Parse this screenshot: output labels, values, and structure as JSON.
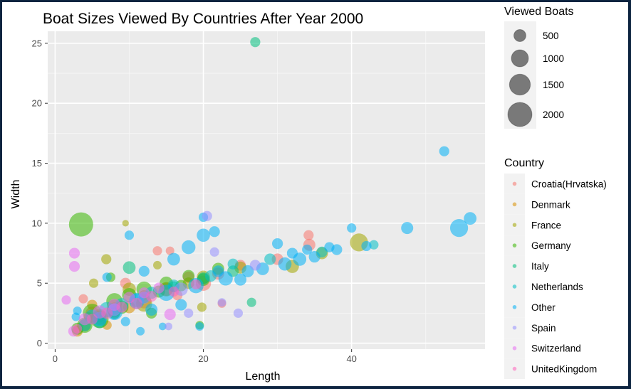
{
  "chart_data": {
    "type": "scatter",
    "title": "Boat Sizes Viewed By Countries After Year 2000",
    "xlabel": "Length",
    "ylabel": "Width",
    "xlim": [
      -1,
      58
    ],
    "ylim": [
      -0.5,
      26
    ],
    "x_ticks": [
      0,
      20,
      40
    ],
    "y_ticks": [
      0,
      5,
      10,
      15,
      20,
      25
    ],
    "grid": true,
    "size_legend": {
      "title": "Viewed Boats",
      "entries": [
        {
          "label": "500",
          "value": 500
        },
        {
          "label": "1000",
          "value": 1000
        },
        {
          "label": "1500",
          "value": 1500
        },
        {
          "label": "2000",
          "value": 2000
        }
      ]
    },
    "color_legend": {
      "title": "Country",
      "placement": "right"
    },
    "series": [
      {
        "name": "Croatia(Hrvatska)",
        "color": "#F8766D",
        "points": [
          {
            "x": 34.2,
            "y": 9.0,
            "size": 350
          },
          {
            "x": 34.3,
            "y": 8.2,
            "size": 500
          },
          {
            "x": 13.8,
            "y": 7.7,
            "size": 300
          },
          {
            "x": 15.5,
            "y": 7.7,
            "size": 250
          },
          {
            "x": 9.5,
            "y": 5.0,
            "size": 400
          },
          {
            "x": 15.0,
            "y": 4.5,
            "size": 600
          },
          {
            "x": 18.0,
            "y": 5.5,
            "size": 450
          },
          {
            "x": 22.0,
            "y": 5.8,
            "size": 500
          },
          {
            "x": 25.0,
            "y": 6.5,
            "size": 400
          },
          {
            "x": 12.0,
            "y": 3.5,
            "size": 700
          },
          {
            "x": 8.0,
            "y": 3.0,
            "size": 800
          },
          {
            "x": 5.0,
            "y": 2.5,
            "size": 600
          },
          {
            "x": 3.8,
            "y": 3.7,
            "size": 300
          },
          {
            "x": 30.0,
            "y": 7.0,
            "size": 450
          },
          {
            "x": 20.0,
            "y": 5.0,
            "size": 800
          },
          {
            "x": 16.5,
            "y": 4.0,
            "size": 350
          },
          {
            "x": 22.5,
            "y": 3.3,
            "size": 250
          }
        ]
      },
      {
        "name": "Denmark",
        "color": "#D89000",
        "points": [
          {
            "x": 3.0,
            "y": 1.0,
            "size": 400
          },
          {
            "x": 4.0,
            "y": 1.5,
            "size": 500
          },
          {
            "x": 6.0,
            "y": 2.0,
            "size": 450
          },
          {
            "x": 5.0,
            "y": 3.2,
            "size": 350
          },
          {
            "x": 8.0,
            "y": 2.5,
            "size": 400
          },
          {
            "x": 10.0,
            "y": 3.0,
            "size": 500
          },
          {
            "x": 7.0,
            "y": 1.5,
            "size": 300
          },
          {
            "x": 12.0,
            "y": 4.0,
            "size": 350
          },
          {
            "x": 4.5,
            "y": 2.2,
            "size": 300
          }
        ]
      },
      {
        "name": "France",
        "color": "#A3A500",
        "points": [
          {
            "x": 9.5,
            "y": 10.0,
            "size": 150
          },
          {
            "x": 6.9,
            "y": 7.0,
            "size": 350
          },
          {
            "x": 13.8,
            "y": 6.5,
            "size": 250
          },
          {
            "x": 5.2,
            "y": 5.0,
            "size": 300
          },
          {
            "x": 41.0,
            "y": 8.4,
            "size": 1100
          },
          {
            "x": 19.8,
            "y": 3.0,
            "size": 300
          },
          {
            "x": 10.0,
            "y": 4.5,
            "size": 600
          },
          {
            "x": 12.0,
            "y": 3.3,
            "size": 900
          },
          {
            "x": 15.0,
            "y": 4.5,
            "size": 700
          },
          {
            "x": 20.0,
            "y": 5.5,
            "size": 600
          },
          {
            "x": 25.0,
            "y": 6.3,
            "size": 500
          },
          {
            "x": 32.0,
            "y": 6.4,
            "size": 600
          },
          {
            "x": 36.0,
            "y": 7.5,
            "size": 500
          },
          {
            "x": 8.0,
            "y": 2.8,
            "size": 700
          },
          {
            "x": 6.0,
            "y": 2.3,
            "size": 600
          },
          {
            "x": 18.0,
            "y": 5.0,
            "size": 450
          }
        ]
      },
      {
        "name": "Germany",
        "color": "#39B600",
        "points": [
          {
            "x": 3.5,
            "y": 9.9,
            "size": 2000
          },
          {
            "x": 6.0,
            "y": 2.0,
            "size": 1100
          },
          {
            "x": 4.0,
            "y": 1.5,
            "size": 800
          },
          {
            "x": 8.0,
            "y": 3.5,
            "size": 900
          },
          {
            "x": 10.0,
            "y": 4.0,
            "size": 700
          },
          {
            "x": 12.0,
            "y": 4.5,
            "size": 800
          },
          {
            "x": 15.0,
            "y": 5.0,
            "size": 600
          },
          {
            "x": 18.0,
            "y": 5.6,
            "size": 500
          },
          {
            "x": 20.0,
            "y": 5.3,
            "size": 550
          },
          {
            "x": 22.0,
            "y": 6.2,
            "size": 500
          },
          {
            "x": 19.5,
            "y": 1.5,
            "size": 250
          },
          {
            "x": 7.5,
            "y": 5.5,
            "size": 300
          },
          {
            "x": 5.0,
            "y": 2.5,
            "size": 1200
          },
          {
            "x": 9.0,
            "y": 3.0,
            "size": 600
          },
          {
            "x": 14.0,
            "y": 4.3,
            "size": 500
          },
          {
            "x": 3.0,
            "y": 1.2,
            "size": 500
          },
          {
            "x": 13.0,
            "y": 2.5,
            "size": 400
          },
          {
            "x": 17.0,
            "y": 4.8,
            "size": 450
          }
        ]
      },
      {
        "name": "Italy",
        "color": "#00BF7D",
        "points": [
          {
            "x": 27.0,
            "y": 25.1,
            "size": 350
          },
          {
            "x": 10.0,
            "y": 6.3,
            "size": 550
          },
          {
            "x": 26.5,
            "y": 3.4,
            "size": 300
          },
          {
            "x": 8.0,
            "y": 2.5,
            "size": 500
          },
          {
            "x": 12.0,
            "y": 3.8,
            "size": 450
          },
          {
            "x": 16.0,
            "y": 4.7,
            "size": 400
          },
          {
            "x": 20.0,
            "y": 5.4,
            "size": 500
          },
          {
            "x": 24.0,
            "y": 6.0,
            "size": 450
          },
          {
            "x": 6.0,
            "y": 1.8,
            "size": 600
          }
        ]
      },
      {
        "name": "Netherlands",
        "color": "#00BFC4",
        "points": [
          {
            "x": 5.0,
            "y": 2.2,
            "size": 700
          },
          {
            "x": 7.0,
            "y": 2.8,
            "size": 800
          },
          {
            "x": 9.0,
            "y": 3.2,
            "size": 600
          },
          {
            "x": 11.0,
            "y": 3.6,
            "size": 700
          },
          {
            "x": 13.0,
            "y": 4.2,
            "size": 500
          },
          {
            "x": 16.0,
            "y": 4.8,
            "size": 500
          },
          {
            "x": 21.0,
            "y": 5.6,
            "size": 450
          },
          {
            "x": 24.0,
            "y": 6.6,
            "size": 400
          },
          {
            "x": 29.0,
            "y": 7.0,
            "size": 450
          },
          {
            "x": 36.0,
            "y": 7.6,
            "size": 400
          },
          {
            "x": 43.0,
            "y": 8.2,
            "size": 300
          },
          {
            "x": 4.0,
            "y": 1.5,
            "size": 500
          }
        ]
      },
      {
        "name": "Other",
        "color": "#00B0F6",
        "points": [
          {
            "x": 52.5,
            "y": 16.0,
            "size": 350
          },
          {
            "x": 54.5,
            "y": 9.6,
            "size": 1100
          },
          {
            "x": 56.0,
            "y": 10.4,
            "size": 550
          },
          {
            "x": 47.5,
            "y": 9.6,
            "size": 500
          },
          {
            "x": 40.0,
            "y": 9.6,
            "size": 300
          },
          {
            "x": 20.0,
            "y": 9.0,
            "size": 600
          },
          {
            "x": 18.0,
            "y": 8.0,
            "size": 650
          },
          {
            "x": 21.5,
            "y": 9.3,
            "size": 400
          },
          {
            "x": 10.0,
            "y": 9.0,
            "size": 300
          },
          {
            "x": 16.0,
            "y": 7.0,
            "size": 550
          },
          {
            "x": 12.0,
            "y": 6.0,
            "size": 400
          },
          {
            "x": 7.0,
            "y": 5.5,
            "size": 300
          },
          {
            "x": 3.0,
            "y": 2.7,
            "size": 250
          },
          {
            "x": 2.8,
            "y": 2.2,
            "size": 250
          },
          {
            "x": 11.5,
            "y": 1.0,
            "size": 250
          },
          {
            "x": 14.5,
            "y": 1.4,
            "size": 200
          },
          {
            "x": 19.5,
            "y": 1.4,
            "size": 250
          },
          {
            "x": 30.0,
            "y": 8.3,
            "size": 400
          },
          {
            "x": 33.0,
            "y": 7.0,
            "size": 600
          },
          {
            "x": 35.0,
            "y": 7.2,
            "size": 450
          },
          {
            "x": 38.0,
            "y": 7.8,
            "size": 400
          },
          {
            "x": 42.0,
            "y": 8.1,
            "size": 350
          },
          {
            "x": 31.0,
            "y": 6.6,
            "size": 600
          },
          {
            "x": 28.0,
            "y": 6.2,
            "size": 550
          },
          {
            "x": 26.0,
            "y": 6.0,
            "size": 500
          },
          {
            "x": 23.0,
            "y": 5.4,
            "size": 700
          },
          {
            "x": 19.0,
            "y": 4.8,
            "size": 800
          },
          {
            "x": 15.0,
            "y": 4.2,
            "size": 900
          },
          {
            "x": 11.0,
            "y": 3.5,
            "size": 800
          },
          {
            "x": 8.0,
            "y": 2.6,
            "size": 900
          },
          {
            "x": 6.0,
            "y": 2.0,
            "size": 700
          },
          {
            "x": 9.5,
            "y": 1.8,
            "size": 300
          },
          {
            "x": 13.0,
            "y": 2.8,
            "size": 500
          },
          {
            "x": 17.0,
            "y": 3.2,
            "size": 450
          },
          {
            "x": 37.0,
            "y": 8.0,
            "size": 350
          },
          {
            "x": 32.0,
            "y": 7.5,
            "size": 400
          },
          {
            "x": 34.0,
            "y": 7.8,
            "size": 350
          },
          {
            "x": 25.0,
            "y": 5.3,
            "size": 500
          },
          {
            "x": 22.0,
            "y": 6.0,
            "size": 450
          },
          {
            "x": 20.0,
            "y": 10.5,
            "size": 300
          }
        ]
      },
      {
        "name": "Spain",
        "color": "#9590FF",
        "points": [
          {
            "x": 20.5,
            "y": 10.6,
            "size": 350
          },
          {
            "x": 21.5,
            "y": 7.6,
            "size": 300
          },
          {
            "x": 18.0,
            "y": 2.5,
            "size": 300
          },
          {
            "x": 24.7,
            "y": 2.5,
            "size": 300
          },
          {
            "x": 22.5,
            "y": 3.4,
            "size": 250
          },
          {
            "x": 15.3,
            "y": 1.4,
            "size": 200
          },
          {
            "x": 17.0,
            "y": 4.5,
            "size": 600
          },
          {
            "x": 12.0,
            "y": 3.8,
            "size": 500
          },
          {
            "x": 8.0,
            "y": 2.8,
            "size": 550
          },
          {
            "x": 27.0,
            "y": 6.5,
            "size": 400
          }
        ]
      },
      {
        "name": "Switzerland",
        "color": "#E76BF3",
        "points": [
          {
            "x": 2.6,
            "y": 7.5,
            "size": 400
          },
          {
            "x": 2.6,
            "y": 6.4,
            "size": 400
          },
          {
            "x": 1.5,
            "y": 3.6,
            "size": 300
          },
          {
            "x": 2.5,
            "y": 1.0,
            "size": 400
          },
          {
            "x": 4.0,
            "y": 2.0,
            "size": 500
          },
          {
            "x": 6.0,
            "y": 2.6,
            "size": 600
          },
          {
            "x": 8.0,
            "y": 3.2,
            "size": 500
          },
          {
            "x": 10.0,
            "y": 3.8,
            "size": 450
          },
          {
            "x": 12.0,
            "y": 4.2,
            "size": 400
          },
          {
            "x": 15.5,
            "y": 2.4,
            "size": 450
          },
          {
            "x": 14.0,
            "y": 4.6,
            "size": 400
          }
        ]
      },
      {
        "name": "UnitedKingdom",
        "color": "#FF62BC",
        "points": [
          {
            "x": 3.0,
            "y": 1.2,
            "size": 300
          },
          {
            "x": 5.0,
            "y": 2.0,
            "size": 400
          },
          {
            "x": 7.0,
            "y": 2.5,
            "size": 450
          },
          {
            "x": 9.0,
            "y": 3.0,
            "size": 400
          },
          {
            "x": 11.0,
            "y": 3.3,
            "size": 450
          },
          {
            "x": 13.0,
            "y": 3.9,
            "size": 400
          },
          {
            "x": 16.0,
            "y": 4.3,
            "size": 350
          },
          {
            "x": 19.0,
            "y": 4.9,
            "size": 350
          }
        ]
      }
    ]
  }
}
